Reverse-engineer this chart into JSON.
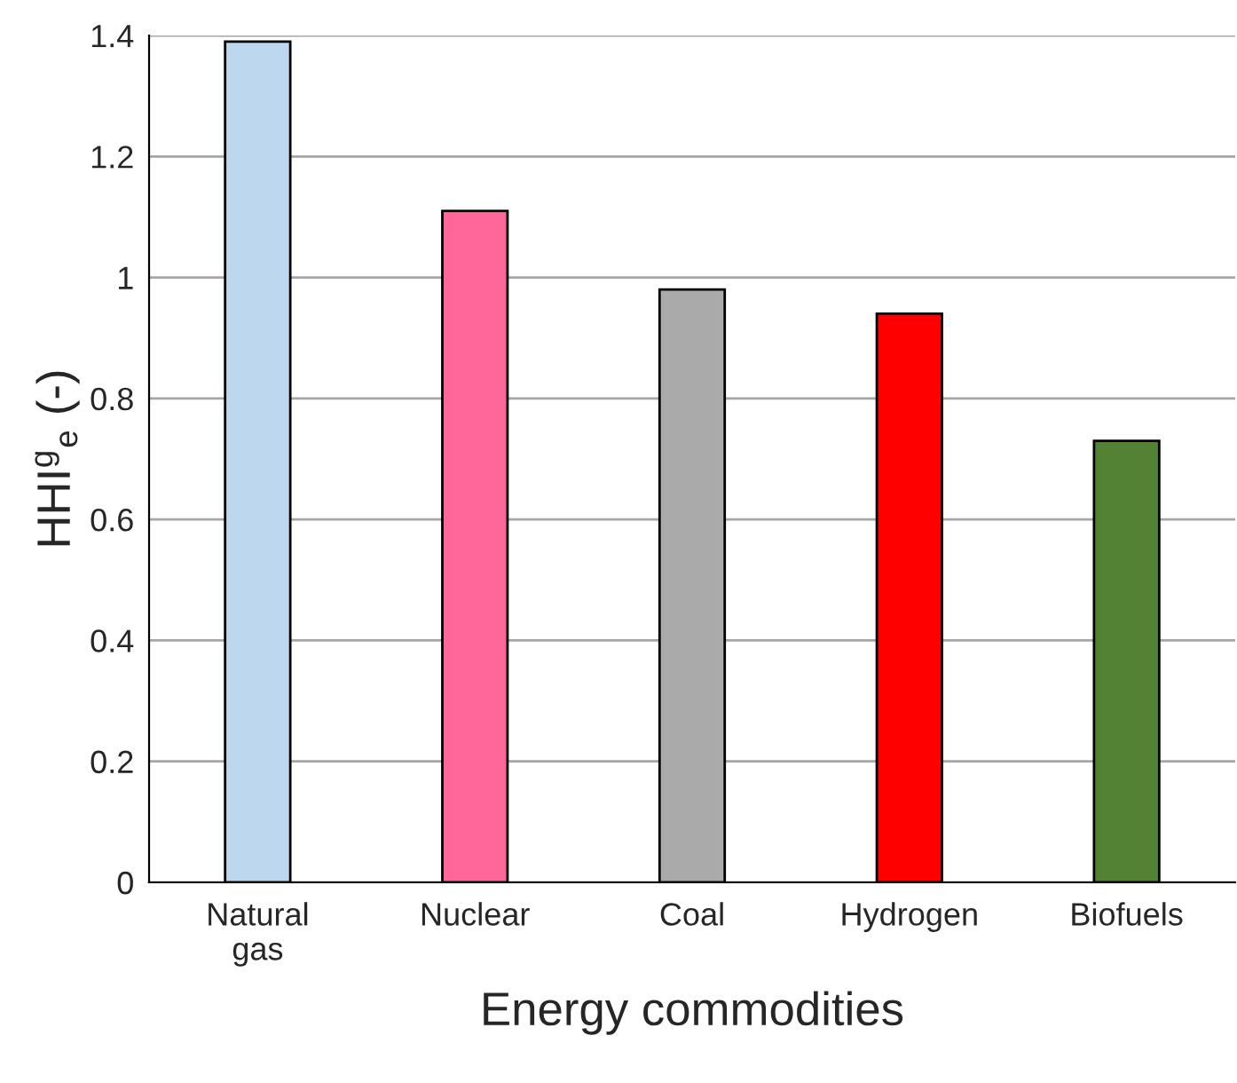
{
  "chart_data": {
    "type": "bar",
    "xlabel": "Energy commodities",
    "ylabel": "HHI$^{g}$$_{e}$ (-)",
    "categories": [
      "Natural\ngas",
      "Nuclear",
      "Coal",
      "Hydrogen",
      "Biofuels"
    ],
    "values": [
      1.39,
      1.11,
      0.98,
      0.94,
      0.73
    ],
    "colors": [
      "#bdd7ee",
      "#ff6699",
      "#aaaaaa",
      "#ff0000",
      "#548235"
    ],
    "ylim": [
      0,
      1.4
    ],
    "yticks": [
      0,
      0.2,
      0.4,
      0.6,
      0.8,
      1,
      1.2,
      1.4
    ],
    "grid": "y",
    "legend": false
  }
}
